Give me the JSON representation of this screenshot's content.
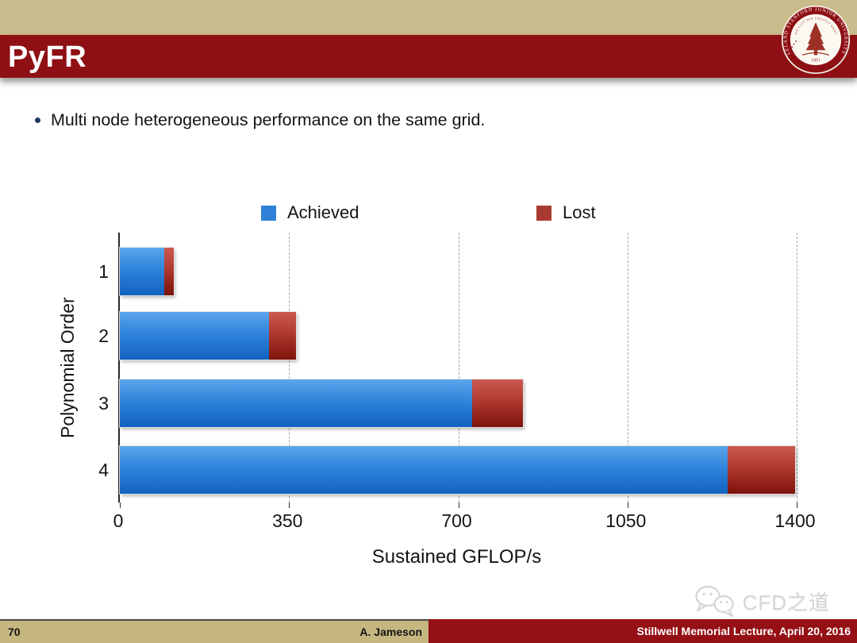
{
  "slide": {
    "title": "PyFR",
    "bullet": "Multi node heterogeneous performance on the same grid.",
    "seal": {
      "ring_text": "LELAND STANFORD JUNIOR UNIVERSITY",
      "motto": "DIE LUFT DER FREIHEIT WEHT",
      "year": "1891"
    },
    "watermark": "CFD之道",
    "footer": {
      "page_number": "70",
      "author": "A. Jameson",
      "event": "Stillwell Memorial Lecture, April 20, 2016"
    }
  },
  "colors": {
    "band_tan": "#CBBC8E",
    "header_red": "#8E1014",
    "footer_tan": "#C6B680",
    "footer_red": "#951015",
    "achieved_blue": "#2E81D6",
    "lost_red": "#A93A31",
    "bullet_dot": "#1F3A63"
  },
  "chart_data": {
    "type": "bar",
    "orientation": "horizontal",
    "stacked": true,
    "title": "",
    "xlabel": "Sustained GFLOP/s",
    "ylabel": "Polynomial Order",
    "categories": [
      "1",
      "2",
      "3",
      "4"
    ],
    "series": [
      {
        "name": "Achieved",
        "color": "#2E81D6",
        "values": [
          92,
          309,
          728,
          1257
        ]
      },
      {
        "name": "Lost",
        "color": "#A93A31",
        "values": [
          20,
          55,
          106,
          139
        ]
      }
    ],
    "totals": [
      112,
      364,
      834,
      1396
    ],
    "xlim": [
      0,
      1400
    ],
    "x_ticks": [
      "0",
      "350",
      "700",
      "1050",
      "1400"
    ],
    "x_tick_values": [
      0,
      350,
      700,
      1050,
      1400
    ],
    "grid": "vertical dashed",
    "legend_position": "top"
  }
}
